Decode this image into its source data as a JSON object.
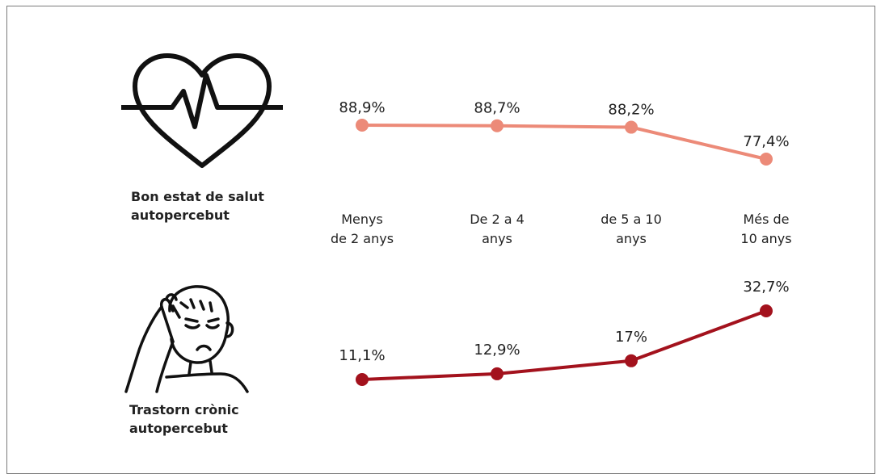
{
  "sections": {
    "health": {
      "label": "Bon estat de salut\nautopercebut",
      "icon": "heart-pulse-icon"
    },
    "chronic": {
      "label": "Trastorn crònic\nautopercebut",
      "icon": "headache-person-icon"
    }
  },
  "chart_data": [
    {
      "type": "line",
      "categories": [
        "Menys\nde 2 anys",
        "De 2 a 4\nanys",
        "de 5 a 10\nanys",
        "Més de\n10 anys"
      ],
      "series": [
        {
          "values": [
            88.9,
            88.7,
            88.2,
            77.4
          ],
          "labels": [
            "88,9%",
            "88,7%",
            "88,2%",
            "77,4%"
          ],
          "color": "#ec8a78"
        }
      ]
    },
    {
      "type": "line",
      "categories": [
        "Menys\nde 2 anys",
        "De 2 a 4\nanys",
        "de 5 a 10\nanys",
        "Més de\n10 anys"
      ],
      "series": [
        {
          "values": [
            11.1,
            12.9,
            17,
            32.7
          ],
          "labels": [
            "11,1%",
            "12,9%",
            "17%",
            "32,7%"
          ],
          "color": "#a3121d"
        }
      ]
    }
  ]
}
